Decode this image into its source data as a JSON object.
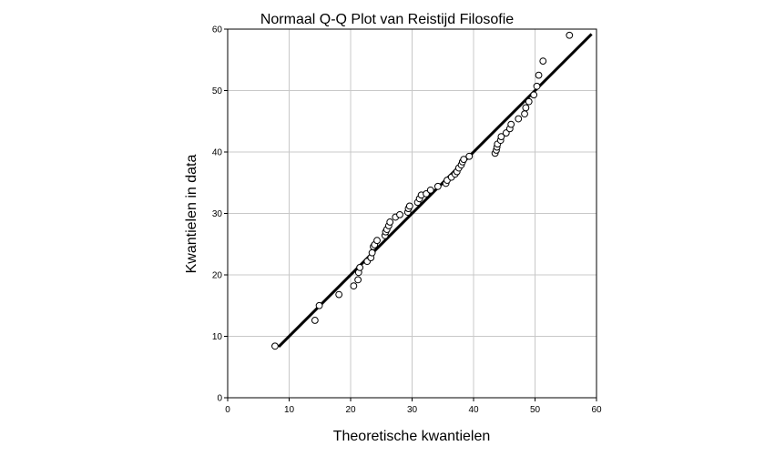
{
  "chart_data": {
    "type": "scatter",
    "title": "Normaal Q-Q Plot van Reistijd Filosofie",
    "xlabel": "Theoretische kwantielen",
    "ylabel": "Kwantielen in data",
    "xlim": [
      0,
      60
    ],
    "ylim": [
      0,
      60
    ],
    "xticks": [
      "0",
      "10",
      "20",
      "30",
      "40",
      "50",
      "60"
    ],
    "yticks": [
      "0",
      "10",
      "20",
      "30",
      "40",
      "50",
      "60"
    ],
    "grid": true,
    "reference_line": {
      "x": [
        8.3,
        59.2
      ],
      "y": [
        8.3,
        59.2
      ]
    },
    "points": [
      [
        7.7,
        8.4
      ],
      [
        14.2,
        12.6
      ],
      [
        14.9,
        15.0
      ],
      [
        18.1,
        16.8
      ],
      [
        20.5,
        18.2
      ],
      [
        21.2,
        19.2
      ],
      [
        21.3,
        20.4
      ],
      [
        21.5,
        21.2
      ],
      [
        22.7,
        22.2
      ],
      [
        23.3,
        22.8
      ],
      [
        23.5,
        23.6
      ],
      [
        23.7,
        24.6
      ],
      [
        23.9,
        24.9
      ],
      [
        24.3,
        25.6
      ],
      [
        25.6,
        26.4
      ],
      [
        25.7,
        27.0
      ],
      [
        25.9,
        27.4
      ],
      [
        26.2,
        28.0
      ],
      [
        26.4,
        28.6
      ],
      [
        27.3,
        29.4
      ],
      [
        28.0,
        29.8
      ],
      [
        29.3,
        30.2
      ],
      [
        29.4,
        30.8
      ],
      [
        29.6,
        31.2
      ],
      [
        30.9,
        31.8
      ],
      [
        31.2,
        32.4
      ],
      [
        31.5,
        33.0
      ],
      [
        32.3,
        33.2
      ],
      [
        33.0,
        33.8
      ],
      [
        34.2,
        34.4
      ],
      [
        35.5,
        34.9
      ],
      [
        35.7,
        35.4
      ],
      [
        36.4,
        35.9
      ],
      [
        37.0,
        36.4
      ],
      [
        37.3,
        36.8
      ],
      [
        37.6,
        37.4
      ],
      [
        38.0,
        37.9
      ],
      [
        38.2,
        38.4
      ],
      [
        38.4,
        38.8
      ],
      [
        39.3,
        39.3
      ],
      [
        43.5,
        39.8
      ],
      [
        43.7,
        40.3
      ],
      [
        43.8,
        40.8
      ],
      [
        43.9,
        41.3
      ],
      [
        44.4,
        41.9
      ],
      [
        44.5,
        42.5
      ],
      [
        45.3,
        43.1
      ],
      [
        45.9,
        43.8
      ],
      [
        46.1,
        44.5
      ],
      [
        47.3,
        45.4
      ],
      [
        48.3,
        46.2
      ],
      [
        48.5,
        47.2
      ],
      [
        49.0,
        48.2
      ],
      [
        49.8,
        49.3
      ],
      [
        50.3,
        50.7
      ],
      [
        50.6,
        52.5
      ],
      [
        51.3,
        54.8
      ],
      [
        55.6,
        59.0
      ]
    ]
  }
}
